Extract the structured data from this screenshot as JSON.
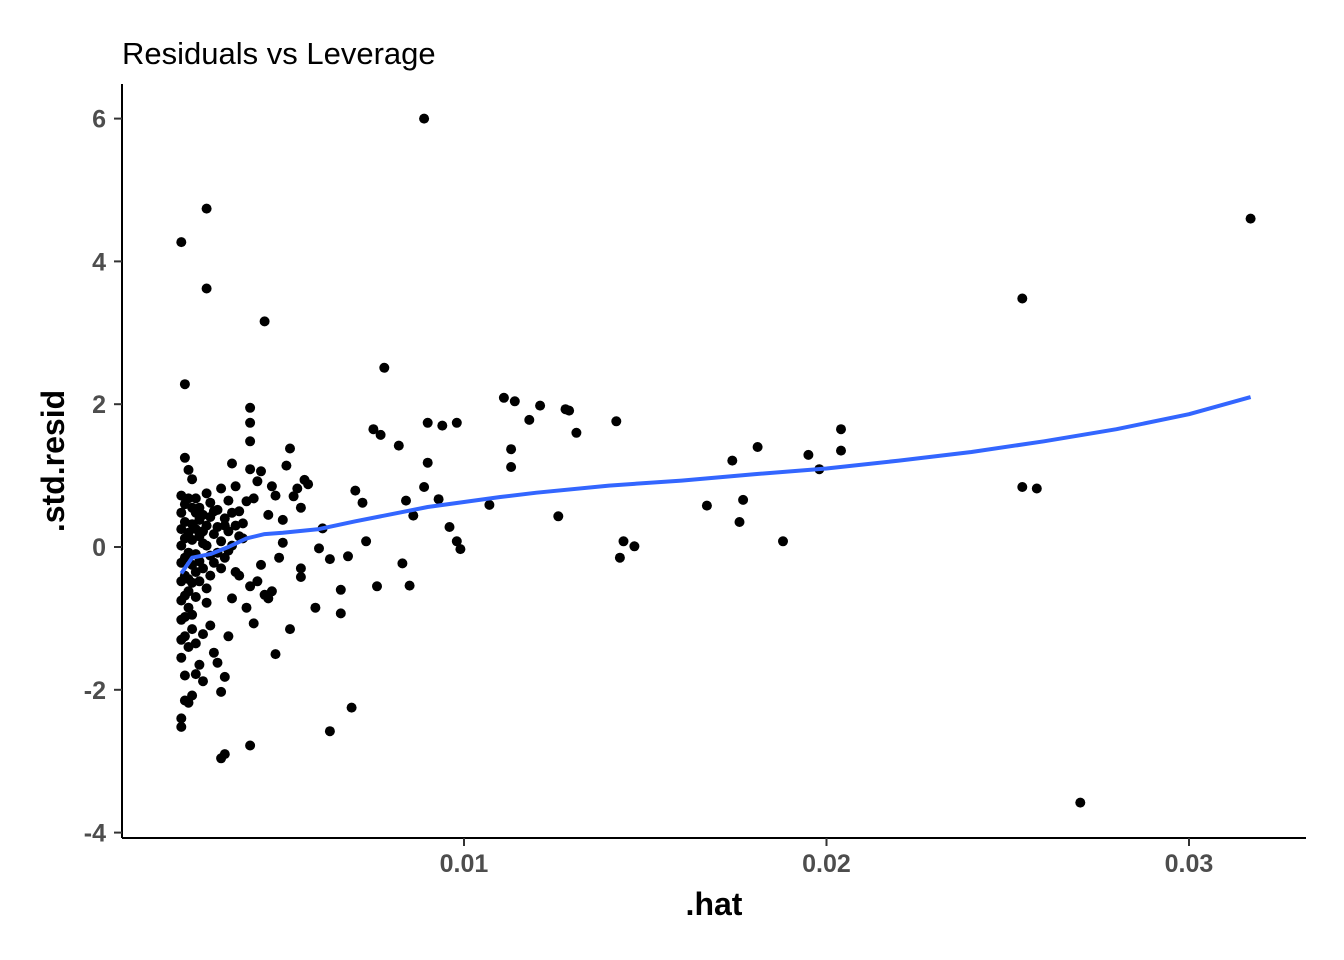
{
  "chart_data": {
    "type": "scatter",
    "title": "Residuals vs Leverage",
    "xlabel": ".hat",
    "ylabel": ".std.resid",
    "xlim": [
      0.0,
      0.0325
    ],
    "ylim": [
      -4.2,
      6.5
    ],
    "xticks": [
      {
        "value": 0.01,
        "label": "0.01"
      },
      {
        "value": 0.02,
        "label": "0.02"
      },
      {
        "value": 0.03,
        "label": "0.03"
      }
    ],
    "yticks": [
      {
        "value": 6,
        "label": "6"
      },
      {
        "value": 4,
        "label": "4"
      },
      {
        "value": 2,
        "label": "2"
      },
      {
        "value": 0,
        "label": "0"
      },
      {
        "value": -2,
        "label": "-2"
      },
      {
        "value": -4,
        "label": "-4"
      }
    ],
    "grid": false,
    "point_color": "#000000",
    "smooth_color": "#3366ff",
    "series": [
      {
        "type": "scatter",
        "points": [
          [
            0.0089,
            6.0
          ],
          [
            0.0022,
            4.27
          ],
          [
            0.0029,
            4.74
          ],
          [
            0.0029,
            3.62
          ],
          [
            0.0045,
            3.16
          ],
          [
            0.0317,
            4.6
          ],
          [
            0.0254,
            3.48
          ],
          [
            0.0023,
            2.28
          ],
          [
            0.0078,
            2.51
          ],
          [
            0.0041,
            1.95
          ],
          [
            0.0111,
            2.09
          ],
          [
            0.0114,
            2.04
          ],
          [
            0.0121,
            1.98
          ],
          [
            0.0118,
            1.78
          ],
          [
            0.0128,
            1.93
          ],
          [
            0.0129,
            1.91
          ],
          [
            0.0131,
            1.6
          ],
          [
            0.0142,
            1.76
          ],
          [
            0.0075,
            1.65
          ],
          [
            0.0077,
            1.57
          ],
          [
            0.0082,
            1.42
          ],
          [
            0.009,
            1.74
          ],
          [
            0.0094,
            1.7
          ],
          [
            0.0098,
            1.74
          ],
          [
            0.0113,
            1.37
          ],
          [
            0.0113,
            1.12
          ],
          [
            0.0204,
            1.65
          ],
          [
            0.0181,
            1.4
          ],
          [
            0.0204,
            1.35
          ],
          [
            0.0195,
            1.29
          ],
          [
            0.0198,
            1.09
          ],
          [
            0.0174,
            1.21
          ],
          [
            0.0177,
            0.66
          ],
          [
            0.0176,
            0.35
          ],
          [
            0.0167,
            0.58
          ],
          [
            0.0188,
            0.08
          ],
          [
            0.0254,
            0.84
          ],
          [
            0.0258,
            0.82
          ],
          [
            0.027,
            -3.58
          ],
          [
            0.0126,
            0.43
          ],
          [
            0.0143,
            -0.15
          ],
          [
            0.0144,
            0.08
          ],
          [
            0.0147,
            0.01
          ],
          [
            0.0107,
            0.59
          ],
          [
            0.0096,
            0.28
          ],
          [
            0.0098,
            0.08
          ],
          [
            0.0099,
            -0.03
          ],
          [
            0.0089,
            0.84
          ],
          [
            0.009,
            1.18
          ],
          [
            0.0093,
            0.67
          ],
          [
            0.0084,
            0.65
          ],
          [
            0.0086,
            0.44
          ],
          [
            0.0083,
            -0.23
          ],
          [
            0.0085,
            -0.54
          ],
          [
            0.0076,
            -0.55
          ],
          [
            0.007,
            0.79
          ],
          [
            0.0072,
            0.62
          ],
          [
            0.0073,
            0.08
          ],
          [
            0.0068,
            -0.13
          ],
          [
            0.0066,
            -0.6
          ],
          [
            0.0063,
            -0.17
          ],
          [
            0.0061,
            0.26
          ],
          [
            0.006,
            -0.02
          ],
          [
            0.0059,
            -0.85
          ],
          [
            0.0055,
            -0.42
          ],
          [
            0.0057,
            0.88
          ],
          [
            0.0056,
            0.94
          ],
          [
            0.0054,
            0.82
          ],
          [
            0.0052,
            1.38
          ],
          [
            0.0051,
            1.14
          ],
          [
            0.0053,
            0.71
          ],
          [
            0.0055,
            0.55
          ],
          [
            0.005,
            0.38
          ],
          [
            0.0048,
            0.72
          ],
          [
            0.0047,
            0.85
          ],
          [
            0.0046,
            0.45
          ],
          [
            0.0044,
            1.06
          ],
          [
            0.0043,
            0.92
          ],
          [
            0.0042,
            0.68
          ],
          [
            0.0041,
            1.74
          ],
          [
            0.0041,
            1.48
          ],
          [
            0.0041,
            1.09
          ],
          [
            0.004,
            0.64
          ],
          [
            0.0039,
            0.33
          ],
          [
            0.0038,
            0.15
          ],
          [
            0.0037,
            0.85
          ],
          [
            0.0036,
            1.17
          ],
          [
            0.0035,
            0.65
          ],
          [
            0.0034,
            0.3
          ],
          [
            0.0033,
            0.82
          ],
          [
            0.0032,
            0.52
          ],
          [
            0.0049,
            -0.15
          ],
          [
            0.0047,
            -0.62
          ],
          [
            0.0046,
            -0.72
          ],
          [
            0.0045,
            -0.67
          ],
          [
            0.0044,
            -0.25
          ],
          [
            0.0043,
            -0.48
          ],
          [
            0.0042,
            -1.07
          ],
          [
            0.0041,
            -0.55
          ],
          [
            0.004,
            -0.85
          ],
          [
            0.005,
            0.06
          ],
          [
            0.0052,
            -1.15
          ],
          [
            0.0048,
            -1.5
          ],
          [
            0.0041,
            -2.78
          ],
          [
            0.0033,
            -2.96
          ],
          [
            0.0034,
            -2.9
          ],
          [
            0.0063,
            -2.58
          ],
          [
            0.0069,
            -2.25
          ],
          [
            0.0066,
            -0.93
          ],
          [
            0.0055,
            -0.3
          ],
          [
            0.0038,
            -0.4
          ],
          [
            0.0036,
            -0.72
          ],
          [
            0.0035,
            -1.25
          ],
          [
            0.0034,
            -1.82
          ],
          [
            0.0033,
            -2.03
          ],
          [
            0.0032,
            -1.62
          ],
          [
            0.0031,
            -1.48
          ],
          [
            0.003,
            -1.1
          ],
          [
            0.0029,
            -0.78
          ],
          [
            0.0028,
            -1.22
          ],
          [
            0.0028,
            -1.88
          ],
          [
            0.0027,
            -1.65
          ],
          [
            0.0026,
            -1.35
          ],
          [
            0.0025,
            -0.95
          ],
          [
            0.0024,
            -0.62
          ],
          [
            0.0023,
            -1.8
          ],
          [
            0.0023,
            -2.15
          ],
          [
            0.0022,
            -2.4
          ],
          [
            0.0022,
            -2.52
          ],
          [
            0.0024,
            -2.18
          ],
          [
            0.0025,
            -2.08
          ],
          [
            0.0026,
            -1.78
          ],
          [
            0.0023,
            -1.25
          ],
          [
            0.0023,
            -0.98
          ],
          [
            0.0024,
            -0.45
          ],
          [
            0.0031,
            -0.22
          ],
          [
            0.003,
            -0.4
          ],
          [
            0.0029,
            -0.58
          ],
          [
            0.0028,
            0.05
          ],
          [
            0.0027,
            0.38
          ],
          [
            0.0026,
            0.68
          ],
          [
            0.0025,
            0.95
          ],
          [
            0.0023,
            1.25
          ],
          [
            0.0024,
            1.08
          ],
          [
            0.0025,
            0.1
          ],
          [
            0.0026,
            0.25
          ],
          [
            0.0027,
            0.55
          ],
          [
            0.0028,
            0.45
          ],
          [
            0.0029,
            0.75
          ],
          [
            0.003,
            0.62
          ],
          [
            0.0031,
            0.18
          ],
          [
            0.0032,
            -0.08
          ],
          [
            0.0033,
            0.08
          ],
          [
            0.0034,
            0.4
          ],
          [
            0.0035,
            -0.05
          ],
          [
            0.0036,
            0.02
          ],
          [
            0.0037,
            -0.35
          ],
          [
            0.0038,
            0.5
          ],
          [
            0.0039,
            0.12
          ],
          [
            0.0022,
            0.72
          ],
          [
            0.0022,
            0.48
          ],
          [
            0.0022,
            0.25
          ],
          [
            0.0022,
            0.02
          ],
          [
            0.0022,
            -0.22
          ],
          [
            0.0022,
            -0.48
          ],
          [
            0.0022,
            -0.75
          ],
          [
            0.0022,
            -1.02
          ],
          [
            0.0022,
            -1.3
          ],
          [
            0.0022,
            -1.55
          ],
          [
            0.0023,
            0.6
          ],
          [
            0.0023,
            0.35
          ],
          [
            0.0023,
            0.12
          ],
          [
            0.0023,
            -0.15
          ],
          [
            0.0023,
            -0.4
          ],
          [
            0.0023,
            -0.68
          ],
          [
            0.0024,
            0.68
          ],
          [
            0.0024,
            0.2
          ],
          [
            0.0024,
            -0.08
          ],
          [
            0.0024,
            -0.85
          ],
          [
            0.0024,
            -1.4
          ],
          [
            0.0025,
            0.55
          ],
          [
            0.0025,
            0.32
          ],
          [
            0.0025,
            -0.25
          ],
          [
            0.0025,
            -0.5
          ],
          [
            0.0025,
            -1.15
          ],
          [
            0.0026,
            0.48
          ],
          [
            0.0026,
            -0.1
          ],
          [
            0.0026,
            -0.35
          ],
          [
            0.0026,
            -0.7
          ],
          [
            0.0027,
            0.15
          ],
          [
            0.0027,
            -0.2
          ],
          [
            0.0027,
            -0.48
          ],
          [
            0.0028,
            0.22
          ],
          [
            0.0028,
            -0.3
          ],
          [
            0.0029,
            0.3
          ],
          [
            0.0029,
            0.02
          ],
          [
            0.003,
            -0.12
          ],
          [
            0.003,
            0.42
          ],
          [
            0.0031,
            0.5
          ],
          [
            0.0032,
            0.28
          ],
          [
            0.0033,
            -0.3
          ],
          [
            0.0034,
            -0.15
          ],
          [
            0.0035,
            0.22
          ],
          [
            0.0036,
            0.48
          ],
          [
            0.0037,
            0.3
          ]
        ]
      },
      {
        "type": "line",
        "points": [
          [
            0.0022,
            -0.37
          ],
          [
            0.0025,
            -0.15
          ],
          [
            0.003,
            -0.1
          ],
          [
            0.0035,
            0.0
          ],
          [
            0.004,
            0.12
          ],
          [
            0.0045,
            0.18
          ],
          [
            0.005,
            0.2
          ],
          [
            0.006,
            0.25
          ],
          [
            0.007,
            0.36
          ],
          [
            0.008,
            0.46
          ],
          [
            0.009,
            0.56
          ],
          [
            0.01,
            0.63
          ],
          [
            0.011,
            0.7
          ],
          [
            0.012,
            0.76
          ],
          [
            0.014,
            0.86
          ],
          [
            0.016,
            0.93
          ],
          [
            0.018,
            1.02
          ],
          [
            0.02,
            1.1
          ],
          [
            0.022,
            1.21
          ],
          [
            0.024,
            1.33
          ],
          [
            0.026,
            1.48
          ],
          [
            0.028,
            1.65
          ],
          [
            0.03,
            1.86
          ],
          [
            0.0317,
            2.1
          ]
        ]
      }
    ]
  }
}
